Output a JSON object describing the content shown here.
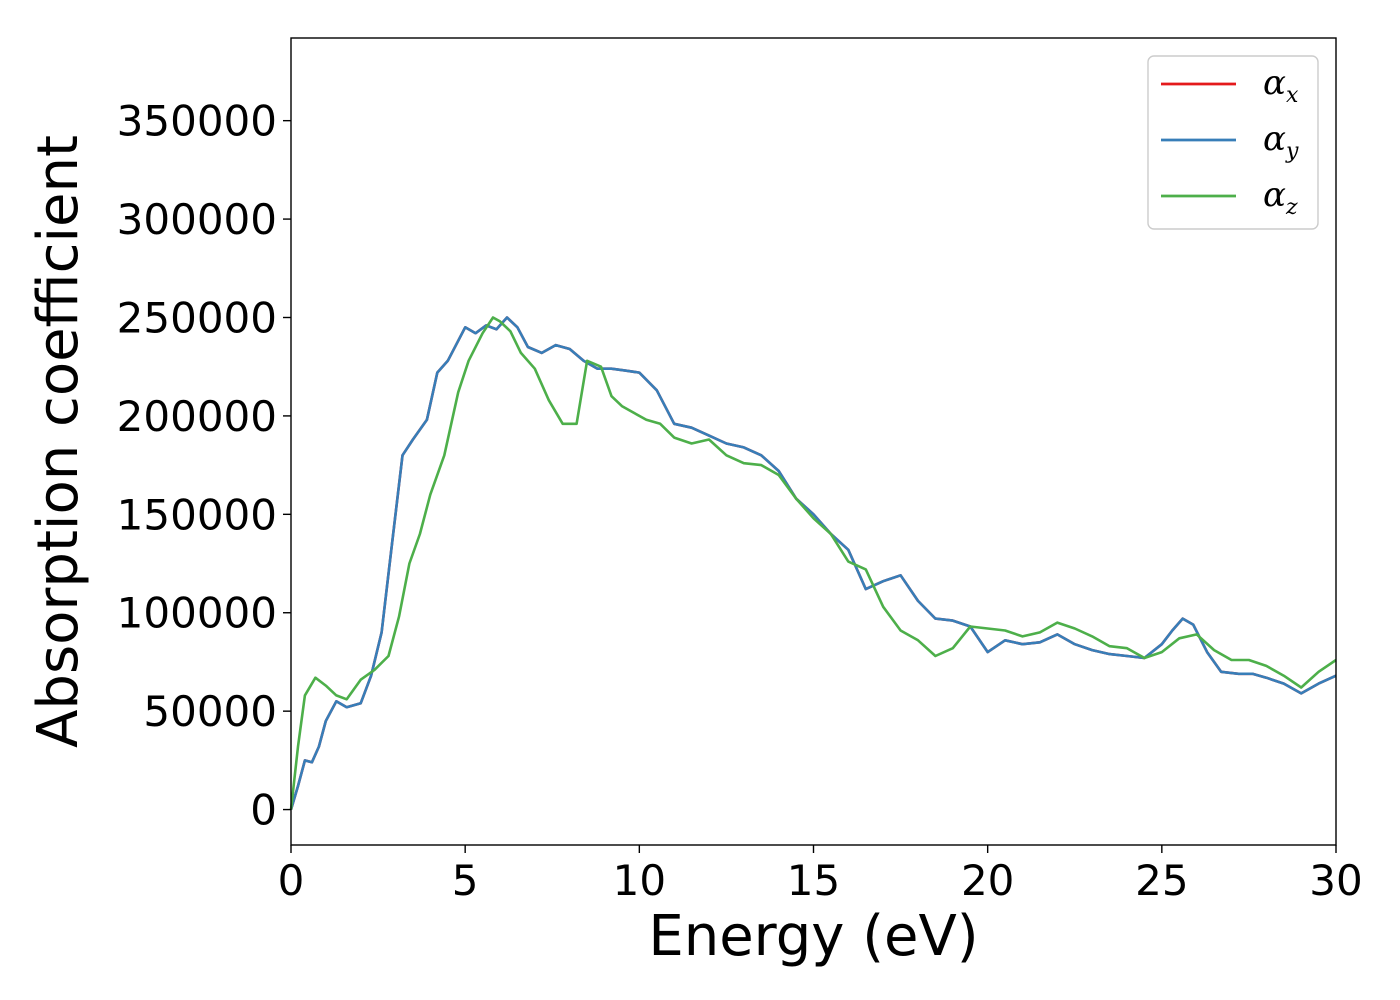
{
  "chart_data": {
    "type": "line",
    "xlabel": "Energy (eV)",
    "ylabel": "Absorption coefficient",
    "xlim": [
      0,
      30
    ],
    "ylim": [
      -18000,
      392000
    ],
    "xticks": [
      0,
      5,
      10,
      15,
      20,
      25,
      30
    ],
    "yticks": [
      0,
      50000,
      100000,
      150000,
      200000,
      250000,
      300000,
      350000
    ],
    "grid": false,
    "legend_position": "top-right",
    "legend": [
      {
        "base": "α",
        "sub": "x",
        "color": "#e41a1c"
      },
      {
        "base": "α",
        "sub": "y",
        "color": "#377eb8"
      },
      {
        "base": "α",
        "sub": "z",
        "color": "#4daf4a"
      }
    ],
    "series": [
      {
        "name": "αx",
        "color": "#e41a1c",
        "x": [
          0,
          0.2,
          0.4,
          0.6,
          0.8,
          1.0,
          1.3,
          1.6,
          2.0,
          2.3,
          2.6,
          2.9,
          3.2,
          3.5,
          3.9,
          4.2,
          4.5,
          5.0,
          5.3,
          5.6,
          5.9,
          6.2,
          6.5,
          6.8,
          7.2,
          7.6,
          8.0,
          8.4,
          8.8,
          9.2,
          9.6,
          10.0,
          10.5,
          11.0,
          11.5,
          12.0,
          12.5,
          13.0,
          13.5,
          14.0,
          14.5,
          15.0,
          15.5,
          16.0,
          16.5,
          17.0,
          17.5,
          18.0,
          18.5,
          19.0,
          19.5,
          20.0,
          20.5,
          21.0,
          21.5,
          22.0,
          22.5,
          23.0,
          23.5,
          24.0,
          24.5,
          25.0,
          25.3,
          25.6,
          25.9,
          26.3,
          26.7,
          27.2,
          27.6,
          28.0,
          28.5,
          29.0,
          29.5,
          30.0
        ],
        "y": [
          0,
          12000,
          25000,
          24000,
          32000,
          45000,
          55000,
          52000,
          54000,
          68000,
          90000,
          135000,
          180000,
          188000,
          198000,
          222000,
          228000,
          245000,
          242000,
          246000,
          244000,
          250000,
          245000,
          235000,
          232000,
          236000,
          234000,
          228000,
          224000,
          224000,
          223000,
          222000,
          213000,
          196000,
          194000,
          190000,
          186000,
          184000,
          180000,
          172000,
          158000,
          150000,
          140000,
          132000,
          112000,
          116000,
          119000,
          106000,
          97000,
          96000,
          93000,
          80000,
          86000,
          84000,
          85000,
          89000,
          84000,
          81000,
          79000,
          78000,
          77000,
          84000,
          91000,
          97000,
          94000,
          80000,
          70000,
          69000,
          69000,
          67000,
          64000,
          59000,
          64000,
          68000
        ]
      },
      {
        "name": "αy",
        "color": "#377eb8",
        "x": [
          0,
          0.2,
          0.4,
          0.6,
          0.8,
          1.0,
          1.3,
          1.6,
          2.0,
          2.3,
          2.6,
          2.9,
          3.2,
          3.5,
          3.9,
          4.2,
          4.5,
          5.0,
          5.3,
          5.6,
          5.9,
          6.2,
          6.5,
          6.8,
          7.2,
          7.6,
          8.0,
          8.4,
          8.8,
          9.2,
          9.6,
          10.0,
          10.5,
          11.0,
          11.5,
          12.0,
          12.5,
          13.0,
          13.5,
          14.0,
          14.5,
          15.0,
          15.5,
          16.0,
          16.5,
          17.0,
          17.5,
          18.0,
          18.5,
          19.0,
          19.5,
          20.0,
          20.5,
          21.0,
          21.5,
          22.0,
          22.5,
          23.0,
          23.5,
          24.0,
          24.5,
          25.0,
          25.3,
          25.6,
          25.9,
          26.3,
          26.7,
          27.2,
          27.6,
          28.0,
          28.5,
          29.0,
          29.5,
          30.0
        ],
        "y": [
          0,
          12000,
          25000,
          24000,
          32000,
          45000,
          55000,
          52000,
          54000,
          68000,
          90000,
          135000,
          180000,
          188000,
          198000,
          222000,
          228000,
          245000,
          242000,
          246000,
          244000,
          250000,
          245000,
          235000,
          232000,
          236000,
          234000,
          228000,
          224000,
          224000,
          223000,
          222000,
          213000,
          196000,
          194000,
          190000,
          186000,
          184000,
          180000,
          172000,
          158000,
          150000,
          140000,
          132000,
          112000,
          116000,
          119000,
          106000,
          97000,
          96000,
          93000,
          80000,
          86000,
          84000,
          85000,
          89000,
          84000,
          81000,
          79000,
          78000,
          77000,
          84000,
          91000,
          97000,
          94000,
          80000,
          70000,
          69000,
          69000,
          67000,
          64000,
          59000,
          64000,
          68000
        ]
      },
      {
        "name": "αz",
        "color": "#4daf4a",
        "x": [
          0,
          0.2,
          0.4,
          0.7,
          1.0,
          1.3,
          1.6,
          2.0,
          2.4,
          2.8,
          3.1,
          3.4,
          3.7,
          4.0,
          4.4,
          4.8,
          5.1,
          5.5,
          5.8,
          6.0,
          6.3,
          6.6,
          7.0,
          7.4,
          7.8,
          8.2,
          8.5,
          8.9,
          9.2,
          9.5,
          9.8,
          10.2,
          10.6,
          11.0,
          11.5,
          12.0,
          12.5,
          13.0,
          13.5,
          14.0,
          14.5,
          15.0,
          15.5,
          16.0,
          16.5,
          17.0,
          17.5,
          18.0,
          18.5,
          19.0,
          19.5,
          20.0,
          20.5,
          21.0,
          21.5,
          22.0,
          22.5,
          23.0,
          23.5,
          24.0,
          24.5,
          25.0,
          25.5,
          26.0,
          26.5,
          27.0,
          27.5,
          28.0,
          28.5,
          29.0,
          29.5,
          30.0
        ],
        "y": [
          0,
          32000,
          58000,
          67000,
          63000,
          58000,
          56000,
          66000,
          71000,
          78000,
          98000,
          125000,
          140000,
          160000,
          180000,
          212000,
          228000,
          242000,
          250000,
          248000,
          243000,
          232000,
          224000,
          208000,
          196000,
          196000,
          228000,
          225000,
          210000,
          205000,
          202000,
          198000,
          196000,
          189000,
          186000,
          188000,
          180000,
          176000,
          175000,
          170000,
          158000,
          148000,
          140000,
          126000,
          122000,
          103000,
          91000,
          86000,
          78000,
          82000,
          93000,
          92000,
          91000,
          88000,
          90000,
          95000,
          92000,
          88000,
          83000,
          82000,
          77000,
          80000,
          87000,
          89000,
          81000,
          76000,
          76000,
          73000,
          68000,
          62000,
          70000,
          76000
        ]
      }
    ]
  }
}
